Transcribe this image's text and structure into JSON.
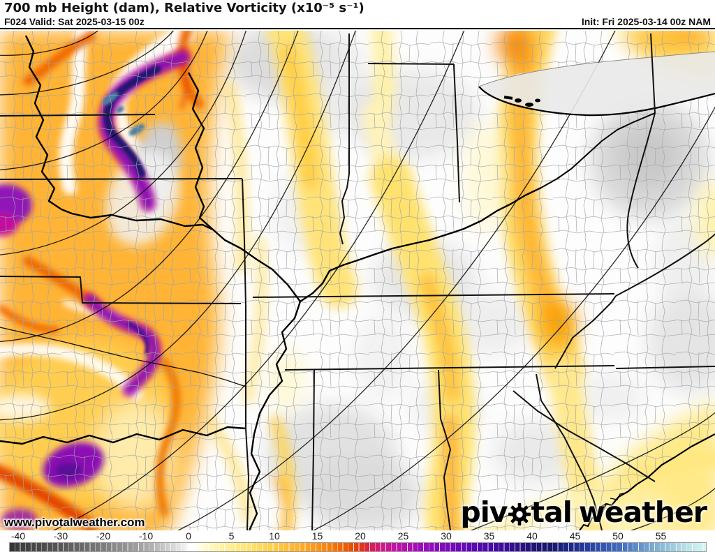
{
  "header": {
    "title": "700 mb Height (dam), Relative Vorticity (x10⁻⁵ s⁻¹)",
    "valid": "F024 Valid: Sat 2025-03-15 00z",
    "init": "Init: Fri 2025-03-14 00z NAM"
  },
  "map": {
    "watermark": "www.pivotalweather.com",
    "logo": {
      "part1": "piv",
      "part2": "tal",
      "part3": "weather"
    }
  },
  "colorbar": {
    "unit": "x10⁻⁵ s⁻¹",
    "ticks": [
      "-40",
      "-30",
      "-20",
      "-10",
      "0",
      "5",
      "10",
      "15",
      "20",
      "25",
      "30",
      "35",
      "40",
      "45",
      "50",
      "55"
    ],
    "values": [
      -40,
      -30,
      -20,
      -10,
      0,
      5,
      10,
      15,
      20,
      25,
      30,
      35,
      40,
      45,
      50,
      55
    ],
    "color_stops": {
      "-40": "#3d3d3d",
      "-20": "#7d7d7d",
      "0": "#ffffff",
      "5": "#ffed8e",
      "10": "#ffcb47",
      "15": "#fb9318",
      "20": "#e13418",
      "25": "#b811ae",
      "30": "#7d09bd",
      "35": "#48099f",
      "40": "#221278",
      "45": "#1f2f92",
      "50": "#406cbe",
      "55": "#89bad8",
      "60": "#d4f4f2"
    }
  }
}
